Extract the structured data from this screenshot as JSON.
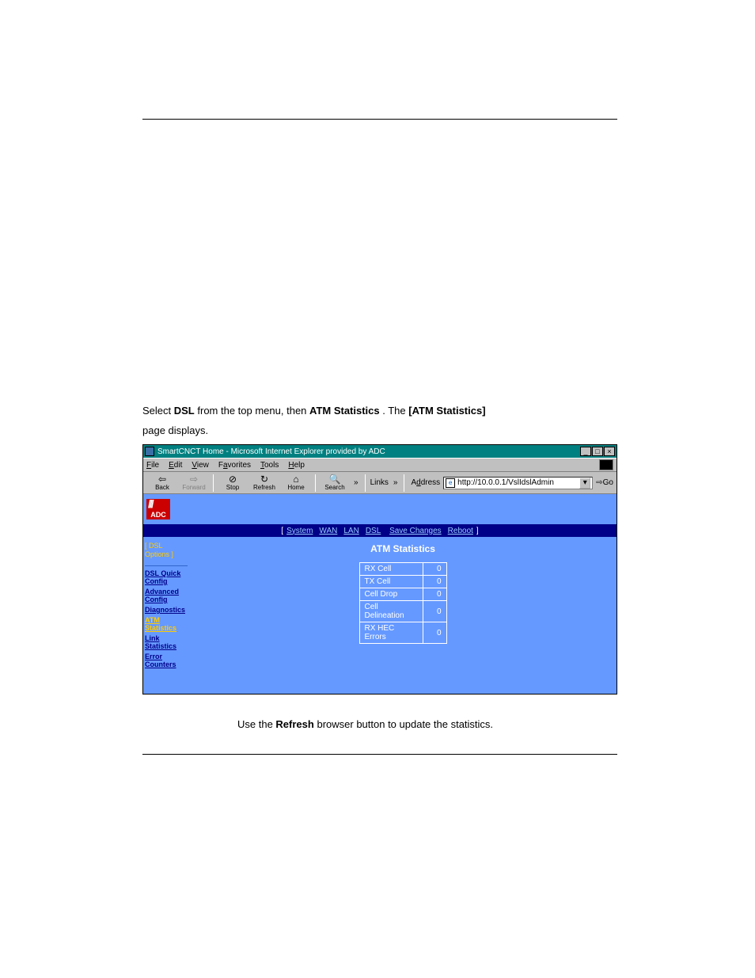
{
  "instruction": {
    "prefix": "Select ",
    "link1": "DSL",
    "mid": " from the top menu, then ",
    "link2": "ATM Statistics",
    "mid2": ". The ",
    "bold3": "[ATM Statistics]",
    "suffix": " page displays."
  },
  "window": {
    "title": "SmartCNCT Home - Microsoft Internet Explorer provided by ADC",
    "min": "_",
    "max": "□",
    "close": "×"
  },
  "menus": [
    "File",
    "Edit",
    "View",
    "Favorites",
    "Tools",
    "Help"
  ],
  "toolbar": {
    "back": "Back",
    "forward": "Forward",
    "stop": "Stop",
    "refresh": "Refresh",
    "home": "Home",
    "search": "Search",
    "links": "Links",
    "addr_label": "Address",
    "address": "http://10.0.0.1/VslIdslAdmin",
    "go": "Go"
  },
  "topnav": {
    "lb": "[",
    "system": "System",
    "wan": "WAN",
    "lan": "LAN",
    "dsl": "DSL",
    "save": "Save Changes",
    "reboot": "Reboot",
    "rb": "]"
  },
  "sidebar": {
    "hdr_l": "[ ",
    "hdr_dsl": "DSL",
    "hdr_opts": "Options",
    "hdr_r": " ]",
    "items": [
      {
        "label": "DSL Quick Config",
        "active": false
      },
      {
        "label": "Advanced Config",
        "active": false
      },
      {
        "label": "Diagnostics",
        "active": false
      },
      {
        "label": "ATM Statistics",
        "active": true
      },
      {
        "label": "Link Statistics",
        "active": false
      },
      {
        "label": "Error Counters",
        "active": false
      }
    ]
  },
  "panel": {
    "title": "ATM Statistics",
    "rows": [
      {
        "label": "RX Cell",
        "value": "0"
      },
      {
        "label": "TX Cell",
        "value": "0"
      },
      {
        "label": "Cell Drop",
        "value": "0"
      },
      {
        "label": "Cell Delineation",
        "value": "0"
      },
      {
        "label": "RX HEC Errors",
        "value": "0"
      }
    ]
  },
  "refresh_line": {
    "pre": "Use the ",
    "bold": "Refresh",
    "post": " browser button to update the statistics."
  },
  "colors": {
    "titlebar": "#008080",
    "chrome": "#c0c0c0",
    "content_bg": "#6699ff",
    "navstrip": "#000088",
    "logo": "#cc0000",
    "highlight": "#ffcc00",
    "link": "#99ccff"
  }
}
